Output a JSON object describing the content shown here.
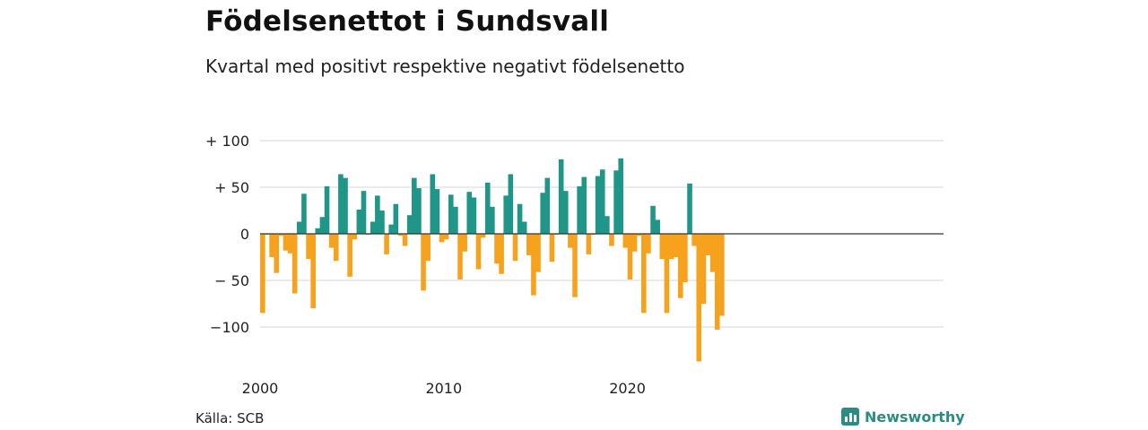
{
  "header": {
    "title": "Födelsenettot i Sundsvall",
    "subtitle": "Kvartal med positivt respektive negativt födelsenetto"
  },
  "footer": {
    "source": "Källa: SCB",
    "brand": "Newsworthy"
  },
  "colors": {
    "positive": "#1f9688",
    "negative": "#f6a21d",
    "brand": "#2b8c82"
  },
  "chart_data": {
    "type": "bar",
    "y_ticks": [
      100,
      50,
      0,
      -50,
      -100
    ],
    "y_tick_labels": [
      "+ 100",
      "+  50",
      "0",
      "− 50",
      "−100"
    ],
    "ylim": [
      -140,
      100
    ],
    "x_ticks": [
      2000,
      2010,
      2020
    ],
    "x_tick_labels": [
      "2000",
      "2010",
      "2020"
    ],
    "start_year": 2000,
    "grid": true,
    "values": [
      -85,
      -1,
      -25,
      -42,
      -2,
      -18,
      -21,
      -64,
      13,
      43,
      -27,
      -80,
      6,
      18,
      51,
      -15,
      -29,
      64,
      60,
      -46,
      -6,
      26,
      46,
      -1,
      13,
      41,
      25,
      -22,
      10,
      32,
      -2,
      -13,
      20,
      60,
      49,
      -61,
      -29,
      64,
      48,
      -9,
      -6,
      42,
      29,
      -49,
      -19,
      45,
      39,
      -38,
      -4,
      55,
      29,
      -32,
      -43,
      41,
      64,
      -29,
      32,
      13,
      -23,
      -66,
      -41,
      44,
      60,
      -30,
      -1,
      80,
      46,
      -15,
      -68,
      51,
      61,
      -22,
      -1,
      62,
      69,
      19,
      -13,
      68,
      81,
      -15,
      -49,
      -19,
      -2,
      -85,
      -21,
      30,
      15,
      -27,
      -85,
      -27,
      -25,
      -69,
      -52,
      54,
      -13,
      -137,
      -75,
      -23,
      -41,
      -103,
      -88
    ]
  }
}
